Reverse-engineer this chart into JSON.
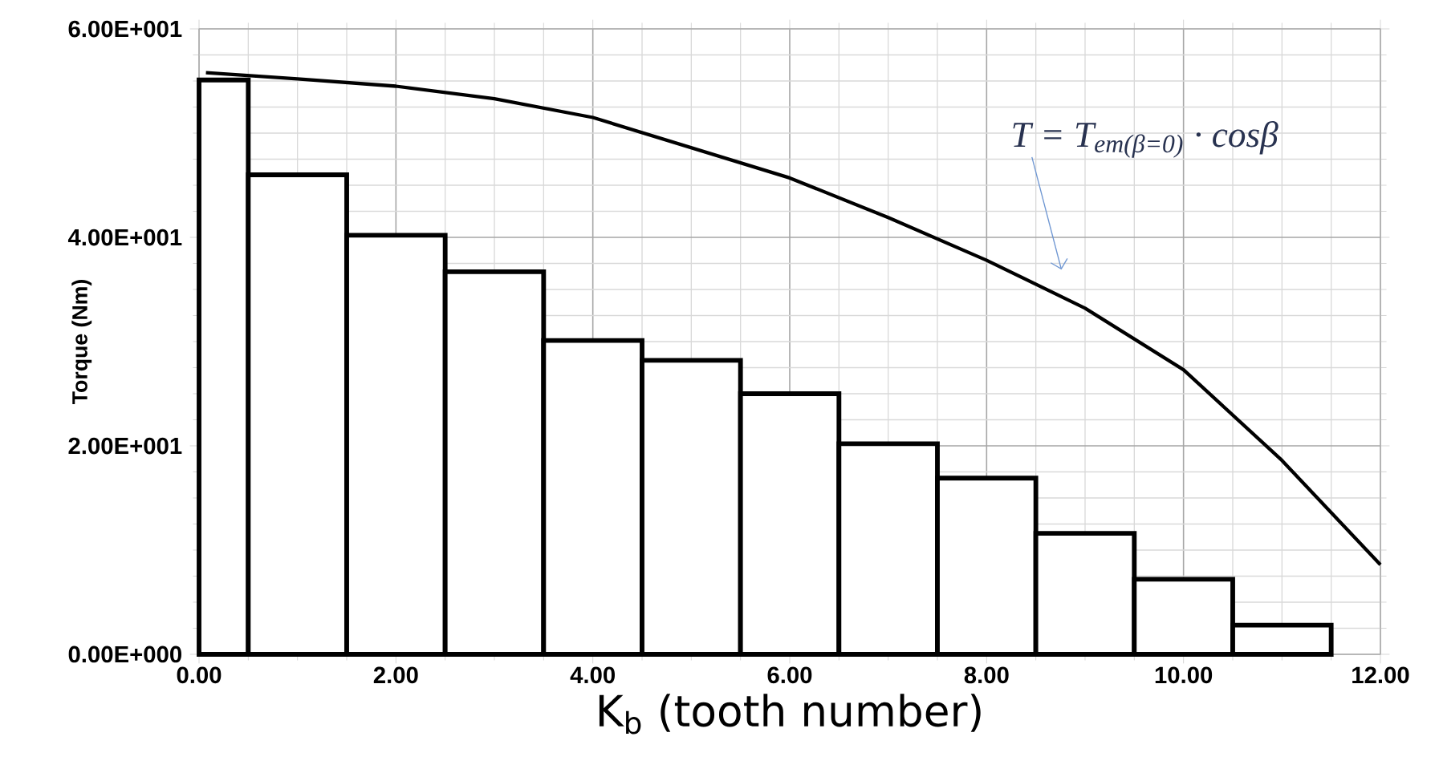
{
  "chart_data": {
    "type": "histogram",
    "bins": [
      0,
      0.5,
      1.5,
      2.5,
      3.5,
      4.5,
      5.5,
      6.5,
      7.5,
      8.5,
      9.5,
      10.5,
      11.5
    ],
    "values": [
      55.1,
      46.0,
      40.2,
      36.7,
      30.1,
      28.2,
      25.0,
      20.2,
      16.9,
      11.6,
      7.2,
      2.8
    ],
    "color": "#ffffff",
    "series": [
      {
        "type": "line",
        "color": "#000000",
        "x": [
          0.07,
          1,
          2,
          3,
          4,
          5,
          6,
          7,
          8,
          9,
          10,
          11,
          12
        ],
        "values": [
          55.8,
          55.2,
          54.5,
          53.3,
          51.5,
          48.6,
          45.7,
          41.9,
          37.8,
          33.2,
          27.3,
          18.6,
          8.6
        ]
      }
    ],
    "xlabel": "K$_{b}$ (tooth number)",
    "ylabel": "Torque (Nm)",
    "xlim": [
      0,
      12
    ],
    "ylim": [
      0,
      60
    ],
    "xticks": [
      {
        "value": 0,
        "label": "0.00"
      },
      {
        "value": 2,
        "label": "2.00"
      },
      {
        "value": 4,
        "label": "4.00"
      },
      {
        "value": 6,
        "label": "6.00"
      },
      {
        "value": 8,
        "label": "8.00"
      },
      {
        "value": 10,
        "label": "10.00"
      },
      {
        "value": 12,
        "label": "12.00"
      }
    ],
    "yticks": [
      {
        "value": 0,
        "label": "0.00E+000"
      },
      {
        "value": 20,
        "label": "2.00E+001"
      },
      {
        "value": 40,
        "label": "4.00E+001"
      },
      {
        "value": 60,
        "label": "6.00E+001"
      }
    ],
    "grid": true,
    "annotations": [
      "T = T$_{em(β=0)}$ · cosβ"
    ]
  }
}
